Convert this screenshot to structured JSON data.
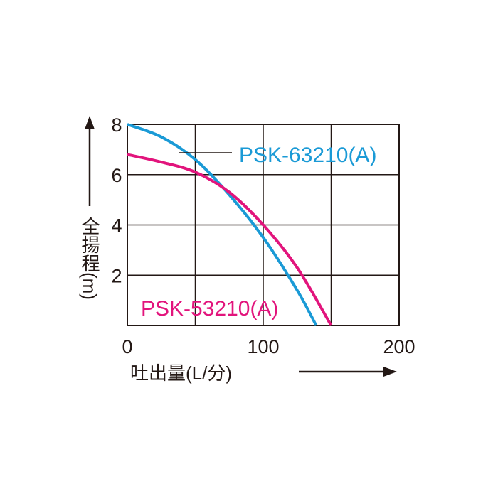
{
  "chart_data": {
    "type": "line",
    "xlabel": "吐出量(L/分)",
    "ylabel": "全揚程(m)",
    "xlim": [
      0,
      200
    ],
    "xticks": [
      0,
      100,
      200
    ],
    "xgrid": [
      0,
      50,
      100,
      150,
      200
    ],
    "ylim": [
      0,
      8
    ],
    "yticks": [
      2,
      4,
      6,
      8
    ],
    "ygrid": [
      0,
      2,
      4,
      6,
      8
    ],
    "series": [
      {
        "name": "PSK-63210(A)",
        "color": "#1a9ad6",
        "x": [
          0,
          25,
          50,
          75,
          100,
          125,
          139
        ],
        "values": [
          8,
          7.5,
          6.6,
          5.2,
          3.5,
          1.4,
          0
        ]
      },
      {
        "name": "PSK-53210(A)",
        "color": "#e2147c",
        "x": [
          0,
          25,
          50,
          75,
          100,
          125,
          150
        ],
        "values": [
          6.8,
          6.5,
          6.1,
          5.3,
          4.0,
          2.3,
          0
        ]
      }
    ]
  }
}
